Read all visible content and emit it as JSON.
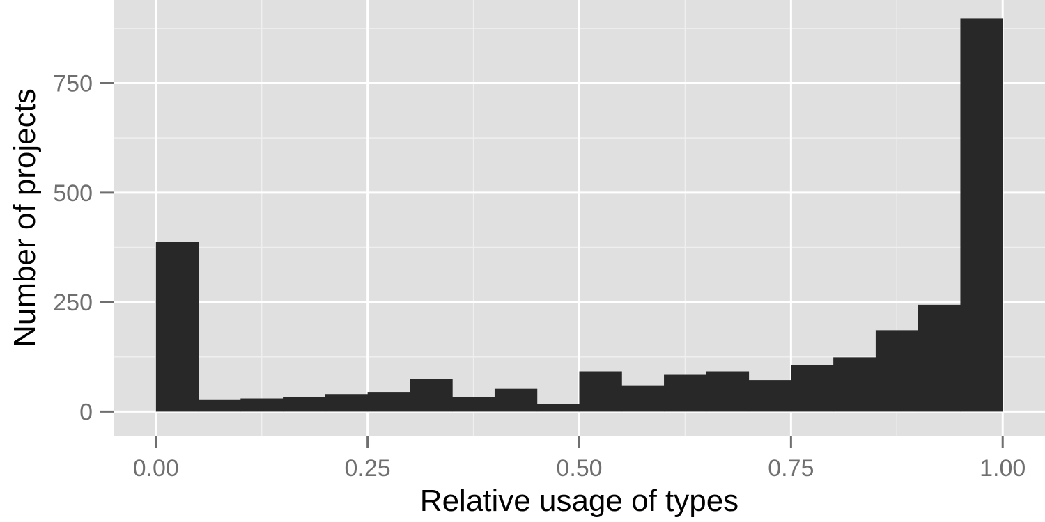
{
  "chart_data": {
    "type": "bar",
    "title": "",
    "xlabel": "Relative usage of types",
    "ylabel": "Number of projects",
    "xlim": [
      -0.05,
      1.05
    ],
    "ylim": [
      -55,
      940
    ],
    "x_ticks": [
      {
        "value": 0.0,
        "label": "0.00"
      },
      {
        "value": 0.25,
        "label": "0.25"
      },
      {
        "value": 0.5,
        "label": "0.50"
      },
      {
        "value": 0.75,
        "label": "0.75"
      },
      {
        "value": 1.0,
        "label": "1.00"
      }
    ],
    "y_ticks": [
      {
        "value": 0,
        "label": "0"
      },
      {
        "value": 250,
        "label": "250"
      },
      {
        "value": 500,
        "label": "500"
      },
      {
        "value": 750,
        "label": "750"
      }
    ],
    "grid": true,
    "bin_edges": [
      0.0,
      0.05,
      0.1,
      0.15,
      0.2,
      0.25,
      0.3,
      0.35,
      0.4,
      0.45,
      0.5,
      0.55,
      0.6,
      0.65,
      0.7,
      0.75,
      0.8,
      0.85,
      0.9,
      0.95,
      1.0
    ],
    "values": [
      388,
      28,
      30,
      33,
      40,
      45,
      74,
      33,
      52,
      18,
      92,
      60,
      84,
      92,
      72,
      106,
      124,
      186,
      244,
      898
    ],
    "colors": {
      "panel_background": "#e0e0e0",
      "major_grid": "#ffffff",
      "minor_grid": "#efefef",
      "bar_fill": "#282828",
      "tick_color": "#6f6f6f",
      "tick_label": "#6f6f6f",
      "axis_title": "#000000"
    }
  }
}
